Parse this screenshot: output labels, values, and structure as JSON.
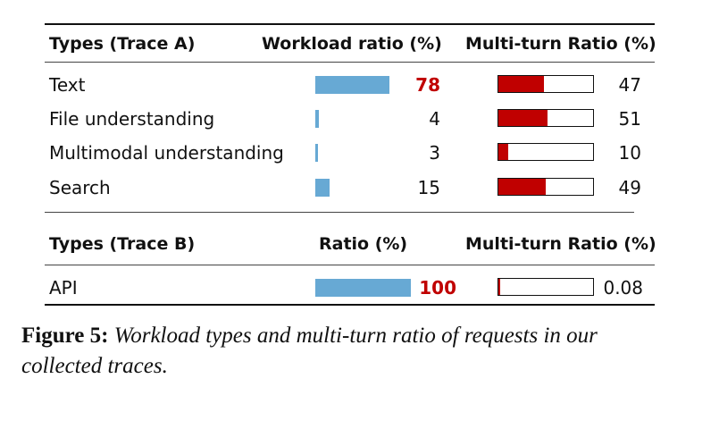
{
  "chart_data": {
    "type": "table",
    "sections": [
      {
        "headers": {
          "types": "Types (Trace A)",
          "ratio": "Workload ratio (%)",
          "multi_turn": "Multi-turn Ratio (%)"
        },
        "rows": [
          {
            "type": "Text",
            "ratio": 78,
            "ratio_label": "78",
            "highlight": true,
            "multi_turn": 47,
            "multi_turn_label": "47"
          },
          {
            "type": "File understanding",
            "ratio": 4,
            "ratio_label": "4",
            "highlight": false,
            "multi_turn": 51,
            "multi_turn_label": "51"
          },
          {
            "type": "Multimodal understanding",
            "ratio": 3,
            "ratio_label": "3",
            "highlight": false,
            "multi_turn": 10,
            "multi_turn_label": "10"
          },
          {
            "type": "Search",
            "ratio": 15,
            "ratio_label": "15",
            "highlight": false,
            "multi_turn": 49,
            "multi_turn_label": "49"
          }
        ]
      },
      {
        "headers": {
          "types": "Types (Trace B)",
          "ratio": "Ratio (%)",
          "multi_turn": "Multi-turn Ratio (%)"
        },
        "rows": [
          {
            "type": "API",
            "ratio": 100,
            "ratio_label": "100",
            "highlight": true,
            "multi_turn": 0.08,
            "multi_turn_label": "0.08"
          }
        ]
      }
    ],
    "colors": {
      "ratio_bar": "#67a9d4",
      "multi_turn_bar": "#c00000",
      "highlight_text": "#c00000"
    }
  },
  "caption": {
    "label": "Figure 5:",
    "text": "Workload types and multi-turn ratio of requests in our collected traces."
  }
}
